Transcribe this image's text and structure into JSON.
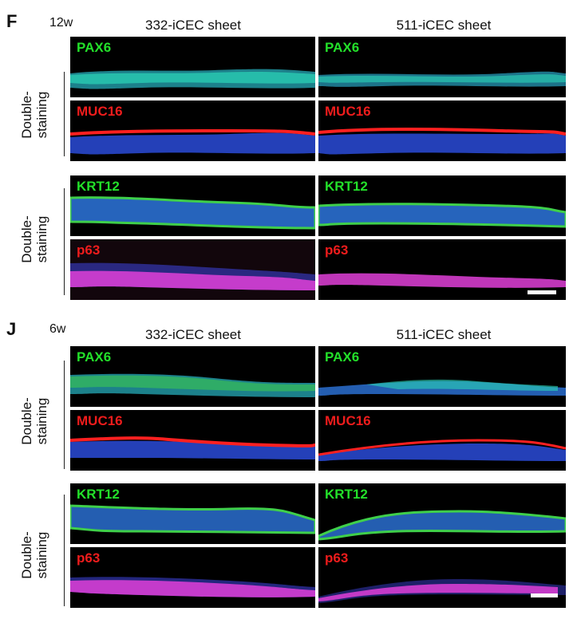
{
  "panels": [
    {
      "letter": "F",
      "timepoint": "12w",
      "columns": [
        "332-iCEC sheet",
        "511-iCEC sheet"
      ],
      "groups": [
        {
          "side_label_line1": "Double-",
          "side_label_line2": "staining",
          "rows": [
            "PAX6",
            "MUC16"
          ]
        },
        {
          "side_label_line1": "Double-",
          "side_label_line2": "staining",
          "rows": [
            "KRT12",
            "p63"
          ]
        }
      ]
    },
    {
      "letter": "J",
      "timepoint": "6w",
      "columns": [
        "332-iCEC sheet",
        "511-iCEC sheet"
      ],
      "groups": [
        {
          "side_label_line1": "Double-",
          "side_label_line2": "staining",
          "rows": [
            "PAX6",
            "MUC16"
          ]
        },
        {
          "side_label_line1": "Double-",
          "side_label_line2": "staining",
          "rows": [
            "KRT12",
            "p63"
          ]
        }
      ]
    }
  ],
  "colors": {
    "green_label": "#23e02a",
    "red_label": "#ee1c1c",
    "nuclei_blue": "#2a4bd8",
    "pax6_cyan": "#2bd6b8",
    "krt12_green": "#3fcf4a",
    "muc16_red": "#ff2020",
    "p63_magenta": "#e040d8"
  }
}
